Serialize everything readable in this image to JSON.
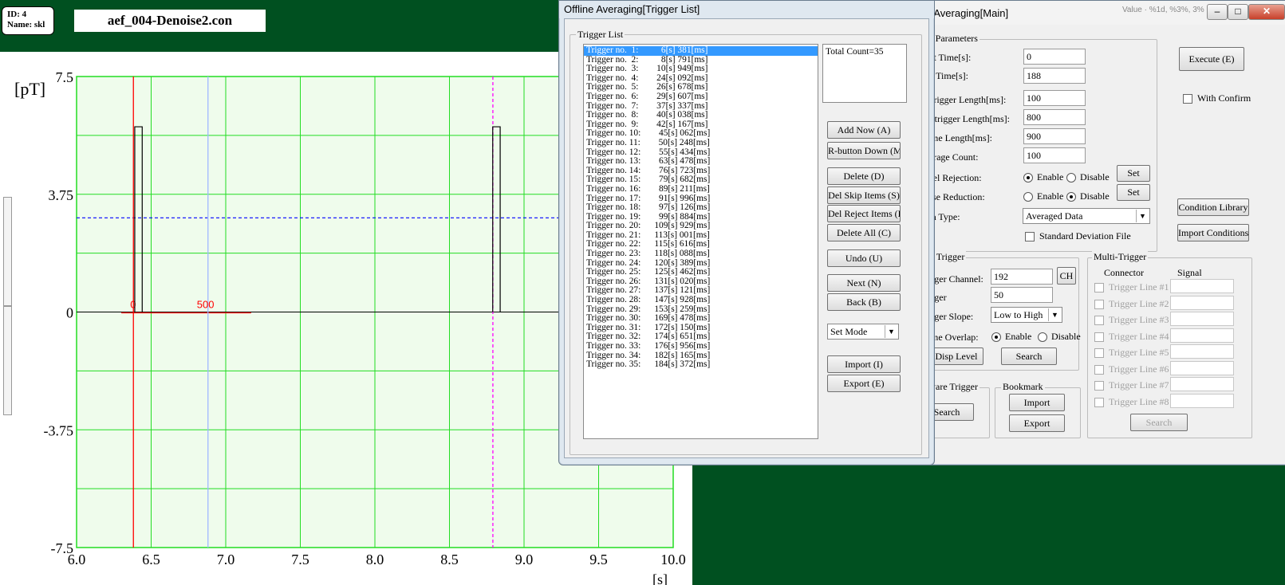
{
  "app": {
    "id_line": "ID: 4",
    "name_line": "Name: skl",
    "file_name": "aef_004-Denoise2.con"
  },
  "chart_data": {
    "type": "line",
    "ylabel": "[pT]",
    "xlabel": "[s]",
    "xlim": [
      6.0,
      10.0
    ],
    "ylim": [
      -7.5,
      7.5
    ],
    "x_ticks": [
      "6.0",
      "6.5",
      "7.0",
      "7.5",
      "8.0",
      "8.5",
      "9.0",
      "9.5",
      "10.0"
    ],
    "y_ticks": [
      "7.5",
      "3.75",
      "0",
      "-3.75",
      "-7.5"
    ],
    "grid": true,
    "background": "#effcec",
    "grid_color": "#22dd22",
    "pulses": [
      {
        "start": 6.39,
        "end": 6.44,
        "height": 5.9
      },
      {
        "start": 8.79,
        "end": 8.84,
        "height": 5.9
      }
    ],
    "markers": [
      {
        "x": 6.381,
        "style": "solid",
        "color": "#ff0000",
        "label": "0"
      },
      {
        "x": 6.881,
        "style": "solid",
        "color": "#a0b8ff",
        "label": "500"
      },
      {
        "x": 8.791,
        "style": "dashed",
        "color": "#ff00ff",
        "label": ""
      }
    ],
    "threshold": {
      "y": 3.0,
      "color": "#0000ff",
      "style": "dashed"
    }
  },
  "trigger_window": {
    "title": "Offline Averaging[Trigger List]",
    "group_label": "Trigger List",
    "total_count": "Total Count=35",
    "items": [
      "Trigger no.  1:          6[s] 381[ms]",
      "Trigger no.  2:          8[s] 791[ms]",
      "Trigger no.  3:        10[s] 949[ms]",
      "Trigger no.  4:        24[s] 092[ms]",
      "Trigger no.  5:        26[s] 678[ms]",
      "Trigger no.  6:        29[s] 607[ms]",
      "Trigger no.  7:        37[s] 337[ms]",
      "Trigger no.  8:        40[s] 038[ms]",
      "Trigger no.  9:        42[s] 167[ms]",
      "Trigger no. 10:        45[s] 062[ms]",
      "Trigger no. 11:        50[s] 248[ms]",
      "Trigger no. 12:        55[s] 434[ms]",
      "Trigger no. 13:        63[s] 478[ms]",
      "Trigger no. 14:        76[s] 723[ms]",
      "Trigger no. 15:        79[s] 682[ms]",
      "Trigger no. 16:        89[s] 211[ms]",
      "Trigger no. 17:        91[s] 996[ms]",
      "Trigger no. 18:        97[s] 126[ms]",
      "Trigger no. 19:        99[s] 884[ms]",
      "Trigger no. 20:      109[s] 929[ms]",
      "Trigger no. 21:      113[s] 001[ms]",
      "Trigger no. 22:      115[s] 616[ms]",
      "Trigger no. 23:      118[s] 088[ms]",
      "Trigger no. 24:      120[s] 389[ms]",
      "Trigger no. 25:      125[s] 462[ms]",
      "Trigger no. 26:      131[s] 020[ms]",
      "Trigger no. 27:      137[s] 121[ms]",
      "Trigger no. 28:      147[s] 928[ms]",
      "Trigger no. 29:      153[s] 259[ms]",
      "Trigger no. 30:      169[s] 478[ms]",
      "Trigger no. 31:      172[s] 150[ms]",
      "Trigger no. 32:      174[s] 651[ms]",
      "Trigger no. 33:      176[s] 956[ms]",
      "Trigger no. 34:      182[s] 165[ms]",
      "Trigger no. 35:      184[s] 372[ms]"
    ],
    "buttons": {
      "add_now": "Add Now (A)",
      "rbutton_down": "R-button Down (M)",
      "delete": "Delete (D)",
      "del_skip": "Del Skip Items (S)",
      "del_reject": "Del Reject Items (R)",
      "delete_all": "Delete All (C)",
      "undo": "Undo (U)",
      "next": "Next (N)",
      "back": "Back (B)",
      "import": "Import (I)",
      "export": "Export (E)"
    },
    "mode_value": "Set Mode"
  },
  "main_window": {
    "title": "ne Averaging[Main]",
    "basic_params_label": "asic Parameters",
    "start_time_label": "Start Time[s]:",
    "start_time": "0",
    "end_time_label": "End Time[s]:",
    "end_time": "188",
    "pretrigger_label": "Pretrigger Length[ms]:",
    "pretrigger": "100",
    "posttrigger_label": "Posttrigger Length[ms]:",
    "posttrigger": "800",
    "frame_length_label": "Frame Length[ms]:",
    "frame_length": "900",
    "average_count_label": "Average Count:",
    "average_count": "100",
    "level_rejection_label": "Level Rejection:",
    "noise_reduction_label": "Noise Reduction:",
    "enable": "Enable",
    "disable": "Disable",
    "set": "Set",
    "data_type_label": "Data Type:",
    "data_type": "Averaged Data",
    "std_dev_label": "Standard Deviation File",
    "execute": "Execute (E)",
    "with_confirm": "With Confirm",
    "condition_library": "Condition Library",
    "import_conditions": "Import Conditions",
    "level_trigger_label": "evel Trigger",
    "trigger_channel_label": "Trigger Channel:",
    "trigger_channel": "192",
    "ch": "CH",
    "trigger_label": "Trigger",
    "trigger": "50",
    "trigger_slope_label": "Trigger Slope:",
    "trigger_slope": "Low to High",
    "frame_overlap_label": "Frame Overlap:",
    "disp_level": "Disp Level",
    "search": "Search",
    "software_trigger_label": "oftware Trigger",
    "bookmark_label": "Bookmark",
    "import": "Import",
    "export": "Export",
    "multi_trigger_label": "Multi-Trigger",
    "connector_label": "Connector",
    "signal_label": "Signal",
    "trigger_lines": [
      "Trigger Line #1",
      "Trigger Line #2",
      "Trigger Line #3",
      "Trigger Line #4",
      "Trigger Line #5",
      "Trigger Line #6",
      "Trigger Line #7",
      "Trigger Line #8"
    ],
    "status_text": "Value  ·  %1d, %3%, 3%"
  }
}
